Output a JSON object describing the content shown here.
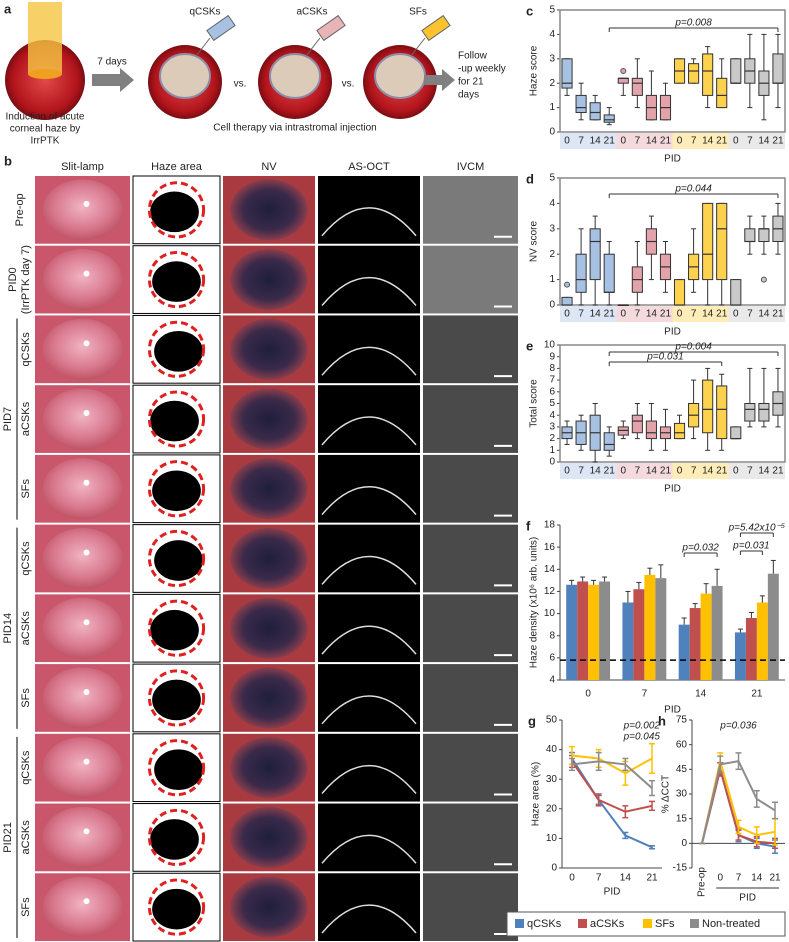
{
  "panel_a": {
    "label": "a",
    "reagents": [
      "qCSKs",
      "aCSKs",
      "SFs"
    ],
    "interval": "7 days",
    "versus": [
      "vs.",
      "vs."
    ],
    "induction": [
      "Induction of acute",
      "corneal haze by",
      "IrrPTK"
    ],
    "therapy": "Cell therapy via intrastromal injection",
    "followup": [
      "Follow",
      "-up weekly",
      "for 21",
      "days"
    ]
  },
  "panel_b": {
    "label": "b",
    "columns": [
      "Slit-lamp",
      "Haze area",
      "NV",
      "AS-OCT",
      "IVCM"
    ],
    "rows": [
      {
        "label": "Pre-op"
      },
      {
        "label": "PID0",
        "sublabel": "(IrrPTK day 7)"
      },
      {
        "label": "qCSKs"
      },
      {
        "label": "aCSKs"
      },
      {
        "label": "SFs"
      },
      {
        "label": "qCSKs"
      },
      {
        "label": "aCSKs"
      },
      {
        "label": "SFs"
      },
      {
        "label": "qCSKs"
      },
      {
        "label": "aCSKs"
      },
      {
        "label": "SFs"
      }
    ],
    "groups": [
      "PID7",
      "PID14",
      "PID21"
    ]
  },
  "chart_data": [
    {
      "type": "box",
      "label": "c",
      "ylabel": "Haze score",
      "xlabel": "PID",
      "ylim": [
        0,
        5
      ],
      "yticks": [
        0,
        1,
        2,
        3,
        4,
        5
      ],
      "categories": [
        "0",
        "7",
        "14",
        "21"
      ],
      "series": [
        {
          "color": "#a7c1e3",
          "boxes": [
            {
              "min": 1.5,
              "q1": 1.8,
              "median": 2,
              "q3": 3,
              "max": 3
            },
            {
              "min": 0.5,
              "q1": 0.8,
              "median": 1,
              "q3": 1.5,
              "max": 2
            },
            {
              "min": 0.5,
              "q1": 0.5,
              "median": 0.8,
              "q3": 1.2,
              "max": 1.5
            },
            {
              "min": 0.3,
              "q1": 0.4,
              "median": 0.5,
              "q3": 0.7,
              "max": 1
            }
          ]
        },
        {
          "color": "#e3a3aa",
          "boxes": [
            {
              "min": 1.5,
              "q1": 2,
              "median": 2.2,
              "q3": 2.2,
              "max": 2.2,
              "outliers": [
                2.5
              ]
            },
            {
              "min": 1,
              "q1": 1.5,
              "median": 2,
              "q3": 2.2,
              "max": 3
            },
            {
              "min": 0.5,
              "q1": 0.5,
              "median": 1,
              "q3": 1.5,
              "max": 2.5
            },
            {
              "min": 0.5,
              "q1": 0.5,
              "median": 1,
              "q3": 1.5,
              "max": 2
            }
          ]
        },
        {
          "color": "#fdd24e",
          "boxes": [
            {
              "min": 2,
              "q1": 2,
              "median": 2.5,
              "q3": 3,
              "max": 3
            },
            {
              "min": 2,
              "q1": 2,
              "median": 2.5,
              "q3": 2.8,
              "max": 3
            },
            {
              "min": 1,
              "q1": 1.5,
              "median": 2.5,
              "q3": 3.2,
              "max": 3.5
            },
            {
              "min": 1,
              "q1": 1,
              "median": 1.5,
              "q3": 2.2,
              "max": 3
            }
          ]
        },
        {
          "color": "#c9c9c9",
          "boxes": [
            {
              "min": 2,
              "q1": 2,
              "median": 2,
              "q3": 3,
              "max": 3
            },
            {
              "min": 1,
              "q1": 2,
              "median": 2.5,
              "q3": 3,
              "max": 4
            },
            {
              "min": 0.5,
              "q1": 1.5,
              "median": 2,
              "q3": 2.5,
              "max": 4
            },
            {
              "min": 1,
              "q1": 2,
              "median": 2,
              "q3": 3.2,
              "max": 4
            }
          ]
        }
      ],
      "annotations": [
        {
          "text": "p=0.008"
        }
      ]
    },
    {
      "type": "box",
      "label": "d",
      "ylabel": "NV score",
      "xlabel": "PID",
      "ylim": [
        0,
        5
      ],
      "yticks": [
        0,
        1,
        2,
        3,
        4,
        5
      ],
      "categories": [
        "0",
        "7",
        "14",
        "21"
      ],
      "series": [
        {
          "color": "#a7c1e3",
          "boxes": [
            {
              "min": 0,
              "q1": 0,
              "median": 0,
              "q3": 0.3,
              "max": 0.3,
              "outliers": [
                0.8
              ]
            },
            {
              "min": 0,
              "q1": 0.5,
              "median": 1,
              "q3": 2,
              "max": 3
            },
            {
              "min": 0,
              "q1": 1,
              "median": 2.5,
              "q3": 3,
              "max": 3.5
            },
            {
              "min": 0,
              "q1": 0.5,
              "median": 0.5,
              "q3": 2,
              "max": 2.5
            }
          ]
        },
        {
          "color": "#e3a3aa",
          "boxes": [
            {
              "min": 0,
              "q1": 0,
              "median": 0,
              "q3": 0,
              "max": 0
            },
            {
              "min": 0,
              "q1": 0.5,
              "median": 1,
              "q3": 1.5,
              "max": 2.5
            },
            {
              "min": 1,
              "q1": 2,
              "median": 2.5,
              "q3": 3,
              "max": 3.5
            },
            {
              "min": 0.5,
              "q1": 1,
              "median": 1.5,
              "q3": 2,
              "max": 2.5
            }
          ]
        },
        {
          "color": "#fdd24e",
          "boxes": [
            {
              "min": 0,
              "q1": 0,
              "median": 0,
              "q3": 1,
              "max": 1
            },
            {
              "min": 0.5,
              "q1": 1,
              "median": 1.5,
              "q3": 2,
              "max": 3
            },
            {
              "min": 0,
              "q1": 1,
              "median": 2,
              "q3": 4,
              "max": 4
            },
            {
              "min": 0,
              "q1": 1,
              "median": 3,
              "q3": 4,
              "max": 4
            }
          ]
        },
        {
          "color": "#c9c9c9",
          "boxes": [
            {
              "min": 0,
              "q1": 0,
              "median": 0,
              "q3": 1,
              "max": 1
            },
            {
              "min": 2,
              "q1": 2.5,
              "median": 2.5,
              "q3": 3,
              "max": 3.5
            },
            {
              "min": 2,
              "q1": 2.5,
              "median": 3,
              "q3": 3,
              "max": 3.5,
              "outliers": [
                1
              ]
            },
            {
              "min": 2,
              "q1": 2.5,
              "median": 3,
              "q3": 3.5,
              "max": 4
            }
          ]
        }
      ],
      "annotations": [
        {
          "text": "p=0.044"
        }
      ]
    },
    {
      "type": "box",
      "label": "e",
      "ylabel": "Total score",
      "xlabel": "PID",
      "ylim": [
        0,
        10
      ],
      "yticks": [
        0,
        1,
        2,
        3,
        4,
        5,
        6,
        7,
        8,
        9,
        10
      ],
      "categories": [
        "0",
        "7",
        "14",
        "21"
      ],
      "series": [
        {
          "color": "#a7c1e3",
          "boxes": [
            {
              "min": 1.5,
              "q1": 2,
              "median": 2.5,
              "q3": 3,
              "max": 3.5
            },
            {
              "min": 1,
              "q1": 1.5,
              "median": 2.5,
              "q3": 3.5,
              "max": 4
            },
            {
              "min": 0,
              "q1": 1,
              "median": 2.5,
              "q3": 4,
              "max": 5
            },
            {
              "min": 0.5,
              "q1": 1,
              "median": 1.5,
              "q3": 2.5,
              "max": 3
            }
          ]
        },
        {
          "color": "#e3a3aa",
          "boxes": [
            {
              "min": 2,
              "q1": 2.3,
              "median": 2.7,
              "q3": 3,
              "max": 3.5
            },
            {
              "min": 2,
              "q1": 2.5,
              "median": 3.5,
              "q3": 4,
              "max": 5
            },
            {
              "min": 1,
              "q1": 2,
              "median": 2.5,
              "q3": 3.5,
              "max": 5
            },
            {
              "min": 1,
              "q1": 2,
              "median": 2.5,
              "q3": 3,
              "max": 4.5
            }
          ]
        },
        {
          "color": "#fdd24e",
          "boxes": [
            {
              "min": 2,
              "q1": 2,
              "median": 2.5,
              "q3": 3.3,
              "max": 4
            },
            {
              "min": 2,
              "q1": 3,
              "median": 4,
              "q3": 5,
              "max": 7
            },
            {
              "min": 1,
              "q1": 2.5,
              "median": 4.5,
              "q3": 7,
              "max": 8
            },
            {
              "min": 1,
              "q1": 2,
              "median": 4.5,
              "q3": 6.5,
              "max": 7.5
            }
          ]
        },
        {
          "color": "#c9c9c9",
          "boxes": [
            {
              "min": 2,
              "q1": 2,
              "median": 2,
              "q3": 3,
              "max": 3
            },
            {
              "min": 3,
              "q1": 3.5,
              "median": 4.5,
              "q3": 5,
              "max": 8
            },
            {
              "min": 3,
              "q1": 3.5,
              "median": 4.5,
              "q3": 5,
              "max": 8
            },
            {
              "min": 3,
              "q1": 4,
              "median": 5,
              "q3": 6,
              "max": 8
            }
          ]
        }
      ],
      "annotations": [
        {
          "text": "p=0.004"
        },
        {
          "text": "p=0.031"
        }
      ]
    },
    {
      "type": "bar",
      "label": "f",
      "ylabel": "Haze density (x10⁶ arb. units)",
      "xlabel": "PID",
      "ylim": [
        4,
        18
      ],
      "yticks": [
        4,
        6,
        8,
        10,
        12,
        14,
        16,
        18
      ],
      "categories": [
        "0",
        "7",
        "14",
        "21"
      ],
      "hline": 5.8,
      "series": [
        {
          "color": "#4f81bd",
          "values": [
            12.6,
            11,
            9,
            8.3
          ],
          "errors": [
            0.4,
            1,
            0.6,
            0.3
          ]
        },
        {
          "color": "#c0504d",
          "values": [
            12.9,
            12.2,
            10.5,
            9.6
          ],
          "errors": [
            0.4,
            0.6,
            0.4,
            0.5
          ]
        },
        {
          "color": "#ffc000",
          "values": [
            12.6,
            13.5,
            11.8,
            11
          ],
          "errors": [
            0.4,
            0.6,
            0.9,
            0.6
          ]
        },
        {
          "color": "#8c8c8c",
          "values": [
            12.9,
            13.2,
            12.5,
            13.6
          ],
          "errors": [
            0.4,
            1.2,
            1.5,
            1.2
          ]
        }
      ],
      "annotations": [
        {
          "text": "p=0.032"
        },
        {
          "text": "p=0.031"
        },
        {
          "text": "p=5.42x10⁻⁵"
        }
      ]
    },
    {
      "type": "line",
      "label": "g",
      "ylabel": "Haze area (%)",
      "xlabel": "PID",
      "ylim": [
        0,
        50
      ],
      "yticks": [
        0,
        10,
        20,
        30,
        40,
        50
      ],
      "categories": [
        "0",
        "7",
        "14",
        "21"
      ],
      "series": [
        {
          "color": "#4f81bd",
          "values": [
            37,
            23,
            11,
            7
          ],
          "errors": [
            2,
            1.5,
            1,
            0.5
          ]
        },
        {
          "color": "#c0504d",
          "values": [
            36,
            23,
            19,
            21
          ],
          "errors": [
            2,
            2,
            2,
            1.5
          ]
        },
        {
          "color": "#ffc000",
          "values": [
            38,
            37,
            32,
            37
          ],
          "errors": [
            3,
            3,
            4,
            5
          ]
        },
        {
          "color": "#8c8c8c",
          "values": [
            35,
            36,
            35,
            27
          ],
          "errors": [
            2,
            3,
            2,
            2.5
          ]
        }
      ],
      "annotations": [
        {
          "text": "p=0.002",
          "color": "#f0a000"
        },
        {
          "text": "p=0.045",
          "color": "#8c8c8c"
        }
      ]
    },
    {
      "type": "line",
      "label": "h",
      "ylabel": "% ΔCCT",
      "xlabel": "PID",
      "ylim": [
        -15,
        75
      ],
      "yticks": [
        -15,
        0,
        15,
        30,
        45,
        60,
        75
      ],
      "categories": [
        "Pre-op",
        "0",
        "7",
        "14",
        "21"
      ],
      "series": [
        {
          "color": "#4f81bd",
          "values": [
            0,
            45,
            5,
            0,
            -2
          ],
          "errors": [
            0,
            4,
            4,
            3,
            4
          ]
        },
        {
          "color": "#c0504d",
          "values": [
            0,
            45,
            5,
            1,
            0
          ],
          "errors": [
            0,
            4,
            3,
            3,
            3
          ]
        },
        {
          "color": "#ffc000",
          "values": [
            0,
            50,
            10,
            5,
            7
          ],
          "errors": [
            0,
            5,
            4,
            5,
            8
          ]
        },
        {
          "color": "#8c8c8c",
          "values": [
            0,
            48,
            50,
            27,
            20
          ],
          "errors": [
            0,
            5,
            5,
            5,
            5
          ]
        }
      ],
      "annotations": [
        {
          "text": "p=0.036",
          "color": "#8c8c8c"
        }
      ]
    }
  ],
  "legend": [
    {
      "name": "qCSKs",
      "color": "#4f81bd"
    },
    {
      "name": "aCSKs",
      "color": "#c0504d"
    },
    {
      "name": "SFs",
      "color": "#ffc000"
    },
    {
      "name": "Non-treated",
      "color": "#8c8c8c"
    }
  ]
}
